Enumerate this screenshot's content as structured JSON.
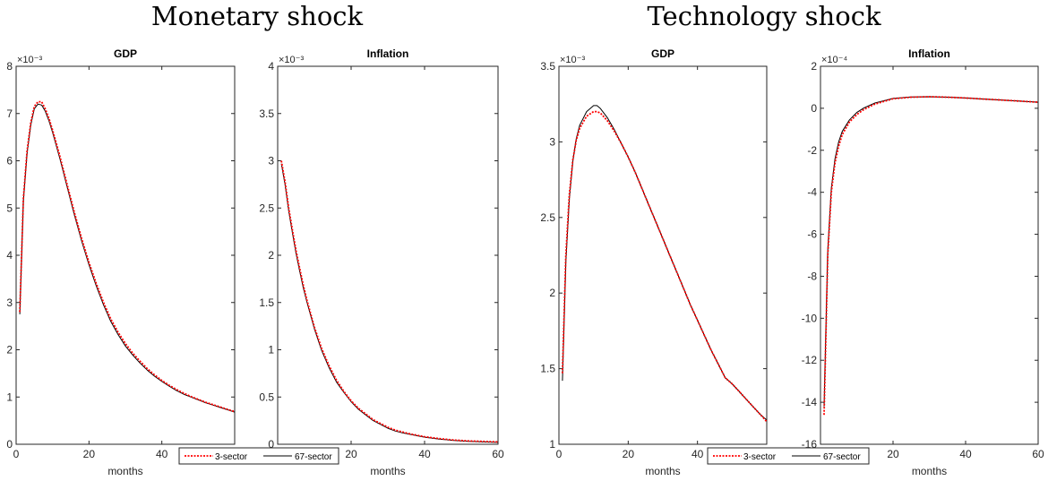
{
  "groups": [
    {
      "title": "Monetary shock",
      "legend": [
        "3-sector",
        "67-sector"
      ],
      "charts": [
        {
          "type": "line",
          "title": "GDP",
          "xlabel": "months",
          "exponent": "×10⁻³",
          "xlim": [
            0,
            60
          ],
          "ylim": [
            0,
            8
          ],
          "xticks": [
            0,
            20,
            40,
            60
          ],
          "yticks": [
            0,
            1,
            2,
            3,
            4,
            5,
            6,
            7,
            8
          ],
          "x": [
            1,
            2,
            3,
            4,
            5,
            6,
            7,
            8,
            9,
            10,
            12,
            14,
            16,
            18,
            20,
            22,
            24,
            26,
            28,
            30,
            32,
            34,
            36,
            38,
            40,
            42,
            44,
            46,
            48,
            50,
            52,
            54,
            56,
            58,
            60
          ],
          "series": [
            {
              "name": "3-sector",
              "color": "#ff0000",
              "style": "dotted",
              "values": [
                2.8,
                5.2,
                6.2,
                6.8,
                7.15,
                7.25,
                7.25,
                7.1,
                6.9,
                6.65,
                6.1,
                5.5,
                4.9,
                4.35,
                3.85,
                3.4,
                3.0,
                2.65,
                2.37,
                2.13,
                1.93,
                1.76,
                1.6,
                1.47,
                1.35,
                1.25,
                1.16,
                1.08,
                1.01,
                0.95,
                0.89,
                0.84,
                0.79,
                0.74,
                0.69
              ]
            },
            {
              "name": "67-sector",
              "color": "#000000",
              "style": "solid",
              "values": [
                2.75,
                5.15,
                6.15,
                6.75,
                7.1,
                7.2,
                7.18,
                7.05,
                6.85,
                6.6,
                6.05,
                5.45,
                4.85,
                4.3,
                3.8,
                3.35,
                2.95,
                2.6,
                2.32,
                2.08,
                1.89,
                1.72,
                1.57,
                1.44,
                1.33,
                1.23,
                1.14,
                1.06,
                1.0,
                0.94,
                0.88,
                0.83,
                0.78,
                0.73,
                0.68
              ]
            }
          ]
        },
        {
          "type": "line",
          "title": "Inflation",
          "xlabel": "months",
          "exponent": "×10⁻³",
          "xlim": [
            0,
            60
          ],
          "ylim": [
            0,
            4
          ],
          "xticks": [
            0,
            20,
            40,
            60
          ],
          "yticks": [
            0,
            0.5,
            1,
            1.5,
            2,
            2.5,
            3,
            3.5,
            4
          ],
          "x": [
            1,
            2,
            3,
            4,
            5,
            6,
            7,
            8,
            10,
            12,
            14,
            16,
            18,
            20,
            22,
            24,
            26,
            28,
            30,
            32,
            34,
            36,
            38,
            40,
            44,
            48,
            52,
            56,
            60
          ],
          "series": [
            {
              "name": "3-sector",
              "color": "#ff0000",
              "style": "dotted",
              "values": [
                3.0,
                2.78,
                2.5,
                2.27,
                2.05,
                1.86,
                1.68,
                1.52,
                1.24,
                1.01,
                0.83,
                0.68,
                0.56,
                0.46,
                0.38,
                0.32,
                0.26,
                0.22,
                0.18,
                0.15,
                0.13,
                0.11,
                0.095,
                0.08,
                0.06,
                0.045,
                0.035,
                0.03,
                0.025
              ]
            },
            {
              "name": "67-sector",
              "color": "#000000",
              "style": "solid",
              "values": [
                2.97,
                2.75,
                2.47,
                2.24,
                2.02,
                1.83,
                1.65,
                1.5,
                1.22,
                0.99,
                0.81,
                0.66,
                0.55,
                0.45,
                0.37,
                0.31,
                0.25,
                0.21,
                0.17,
                0.14,
                0.12,
                0.105,
                0.09,
                0.075,
                0.055,
                0.04,
                0.03,
                0.025,
                0.02
              ]
            }
          ]
        }
      ]
    },
    {
      "title": "Technology shock",
      "legend": [
        "3-sector",
        "67-sector"
      ],
      "charts": [
        {
          "type": "line",
          "title": "GDP",
          "xlabel": "months",
          "exponent": "×10⁻³",
          "xlim": [
            0,
            60
          ],
          "ylim": [
            1,
            3.5
          ],
          "xticks": [
            0,
            20,
            40,
            60
          ],
          "yticks": [
            1,
            1.5,
            2,
            2.5,
            3,
            3.5
          ],
          "x": [
            1,
            2,
            3,
            4,
            5,
            6,
            8,
            10,
            11,
            12,
            14,
            16,
            18,
            20,
            22,
            24,
            26,
            28,
            30,
            32,
            34,
            36,
            38,
            40,
            42,
            44,
            46,
            48,
            50,
            52,
            54,
            56,
            58,
            60
          ],
          "series": [
            {
              "name": "3-sector",
              "color": "#ff0000",
              "style": "dotted",
              "values": [
                1.47,
                2.25,
                2.65,
                2.88,
                3.01,
                3.09,
                3.17,
                3.2,
                3.2,
                3.19,
                3.14,
                3.07,
                2.99,
                2.9,
                2.8,
                2.69,
                2.58,
                2.47,
                2.36,
                2.25,
                2.14,
                2.03,
                1.92,
                1.82,
                1.72,
                1.62,
                1.53,
                1.44,
                1.4,
                1.35,
                1.3,
                1.25,
                1.2,
                1.15
              ]
            },
            {
              "name": "67-sector",
              "color": "#000000",
              "style": "solid",
              "values": [
                1.42,
                2.2,
                2.62,
                2.87,
                3.02,
                3.11,
                3.2,
                3.24,
                3.24,
                3.22,
                3.16,
                3.08,
                2.99,
                2.9,
                2.8,
                2.69,
                2.58,
                2.47,
                2.36,
                2.25,
                2.14,
                2.03,
                1.92,
                1.82,
                1.72,
                1.62,
                1.53,
                1.44,
                1.4,
                1.35,
                1.3,
                1.25,
                1.2,
                1.16
              ]
            }
          ]
        },
        {
          "type": "line",
          "title": "Inflation",
          "xlabel": "months",
          "exponent": "×10⁻⁴",
          "xlim": [
            0,
            60
          ],
          "ylim": [
            -16,
            2
          ],
          "xticks": [
            0,
            20,
            40,
            60
          ],
          "yticks": [
            -16,
            -14,
            -12,
            -10,
            -8,
            -6,
            -4,
            -2,
            0,
            2
          ],
          "x": [
            1,
            2,
            3,
            4,
            5,
            6,
            8,
            10,
            12,
            15,
            20,
            25,
            30,
            35,
            40,
            45,
            50,
            55,
            60
          ],
          "series": [
            {
              "name": "3-sector",
              "color": "#ff0000",
              "style": "dotted",
              "values": [
                -14.6,
                -7.0,
                -4.0,
                -2.6,
                -1.8,
                -1.25,
                -0.65,
                -0.3,
                -0.05,
                0.2,
                0.45,
                0.53,
                0.55,
                0.53,
                0.49,
                0.44,
                0.39,
                0.34,
                0.29
              ]
            },
            {
              "name": "67-sector",
              "color": "#000000",
              "style": "solid",
              "values": [
                -14.2,
                -6.8,
                -3.8,
                -2.4,
                -1.6,
                -1.1,
                -0.55,
                -0.2,
                0.02,
                0.25,
                0.47,
                0.54,
                0.55,
                0.53,
                0.49,
                0.44,
                0.39,
                0.34,
                0.29
              ]
            }
          ]
        }
      ]
    }
  ]
}
